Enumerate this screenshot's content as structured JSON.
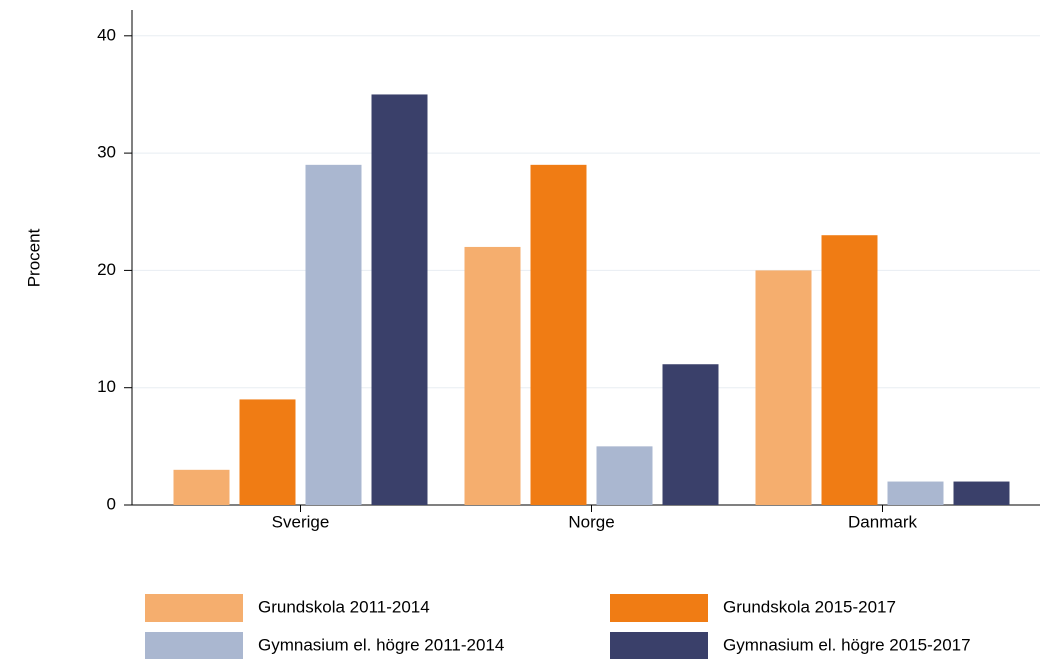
{
  "chart_data": {
    "type": "bar",
    "ylabel": "Procent",
    "categories": [
      "Sverige",
      "Norge",
      "Danmark"
    ],
    "series": [
      {
        "name": "Grundskola 2011-2014",
        "color": "#f5ae6e",
        "values": [
          3,
          22,
          20
        ]
      },
      {
        "name": "Grundskola 2015-2017",
        "color": "#f07c14",
        "values": [
          9,
          29,
          23
        ]
      },
      {
        "name": "Gymnasium el. högre 2011-2014",
        "color": "#aab7d0",
        "values": [
          29,
          5,
          2
        ]
      },
      {
        "name": "Gymnasium el. högre 2015-2017",
        "color": "#3a406a",
        "values": [
          35,
          12,
          2
        ]
      }
    ],
    "ylim": [
      0,
      42.2
    ],
    "yticks": [
      0,
      10,
      20,
      30,
      40
    ],
    "grid": true
  }
}
